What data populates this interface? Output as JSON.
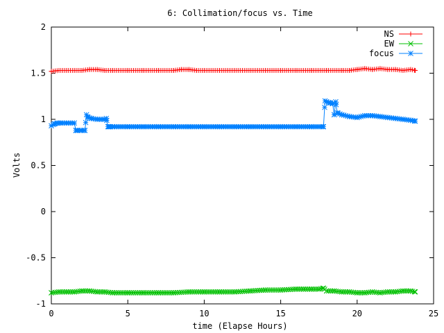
{
  "chart_data": {
    "type": "line",
    "title": "6: Collimation/focus vs. Time",
    "xlabel": "time (Elapse Hours)",
    "ylabel": "Volts",
    "xlim": [
      0,
      25
    ],
    "ylim": [
      -1,
      2
    ],
    "x_ticks": [
      0,
      5,
      10,
      15,
      20,
      25
    ],
    "x_tick_labels": [
      "0",
      "5",
      "10",
      "15",
      "20",
      "25"
    ],
    "y_ticks": [
      -1,
      -0.5,
      0,
      0.5,
      1,
      1.5,
      2
    ],
    "y_tick_labels": [
      "-1",
      "-0.5",
      "0",
      "0.5",
      "1",
      "1.5",
      "2"
    ],
    "grid": false,
    "legend_position": "top-right",
    "series": [
      {
        "name": "NS",
        "color": "#ff0000",
        "marker": "plus",
        "x": [
          0,
          0.5,
          1,
          1.5,
          2,
          2.5,
          3,
          3.5,
          4,
          5,
          6,
          7,
          8,
          8.5,
          9,
          9.5,
          10,
          11,
          12,
          13,
          14,
          15,
          16,
          17,
          18,
          19,
          19.5,
          20,
          20.5,
          21,
          21.5,
          22,
          22.5,
          23,
          23.5,
          23.8
        ],
        "y": [
          1.52,
          1.53,
          1.53,
          1.53,
          1.53,
          1.54,
          1.54,
          1.53,
          1.53,
          1.53,
          1.53,
          1.53,
          1.53,
          1.54,
          1.54,
          1.53,
          1.53,
          1.53,
          1.53,
          1.53,
          1.53,
          1.53,
          1.53,
          1.53,
          1.53,
          1.53,
          1.53,
          1.54,
          1.55,
          1.54,
          1.55,
          1.54,
          1.54,
          1.53,
          1.54,
          1.53
        ]
      },
      {
        "name": "EW",
        "color": "#00c000",
        "marker": "cross",
        "x": [
          0,
          0.5,
          1,
          1.5,
          2,
          2.5,
          3,
          3.5,
          4,
          5,
          6,
          7,
          8,
          9,
          10,
          11,
          12,
          13,
          14,
          15,
          16,
          16.5,
          17,
          17.5,
          17.8,
          18,
          18.5,
          19,
          19.5,
          20,
          20.5,
          21,
          21.5,
          22,
          22.5,
          23,
          23.5,
          23.8
        ],
        "y": [
          -0.88,
          -0.87,
          -0.87,
          -0.87,
          -0.86,
          -0.86,
          -0.87,
          -0.87,
          -0.88,
          -0.88,
          -0.88,
          -0.88,
          -0.88,
          -0.87,
          -0.87,
          -0.87,
          -0.87,
          -0.86,
          -0.85,
          -0.85,
          -0.84,
          -0.84,
          -0.84,
          -0.84,
          -0.83,
          -0.86,
          -0.86,
          -0.87,
          -0.87,
          -0.88,
          -0.88,
          -0.87,
          -0.88,
          -0.87,
          -0.87,
          -0.86,
          -0.86,
          -0.87
        ]
      },
      {
        "name": "focus",
        "color": "#0080ff",
        "marker": "star",
        "x": [
          0,
          0.2,
          0.4,
          0.6,
          1,
          1.5,
          1.6,
          1.7,
          2,
          2.2,
          2.3,
          2.4,
          2.6,
          3,
          3.5,
          3.6,
          3.7,
          3.8,
          4,
          5,
          6,
          7,
          8,
          9,
          10,
          11,
          12,
          13,
          14,
          15,
          16,
          17,
          17.8,
          17.9,
          18,
          18.2,
          18.4,
          18.5,
          18.6,
          18.7,
          19,
          19.5,
          20,
          20.5,
          21,
          21.5,
          22,
          22.5,
          23,
          23.5,
          23.8
        ],
        "y": [
          0.93,
          0.95,
          0.96,
          0.96,
          0.96,
          0.96,
          0.88,
          0.88,
          0.88,
          0.88,
          1.05,
          1.02,
          1.01,
          1.0,
          1.0,
          1.01,
          0.92,
          0.92,
          0.92,
          0.92,
          0.92,
          0.92,
          0.92,
          0.92,
          0.92,
          0.92,
          0.92,
          0.92,
          0.92,
          0.92,
          0.92,
          0.92,
          0.92,
          1.2,
          1.19,
          1.18,
          1.17,
          1.05,
          1.19,
          1.07,
          1.05,
          1.03,
          1.02,
          1.04,
          1.04,
          1.03,
          1.02,
          1.01,
          1.0,
          0.99,
          0.98
        ]
      }
    ]
  }
}
